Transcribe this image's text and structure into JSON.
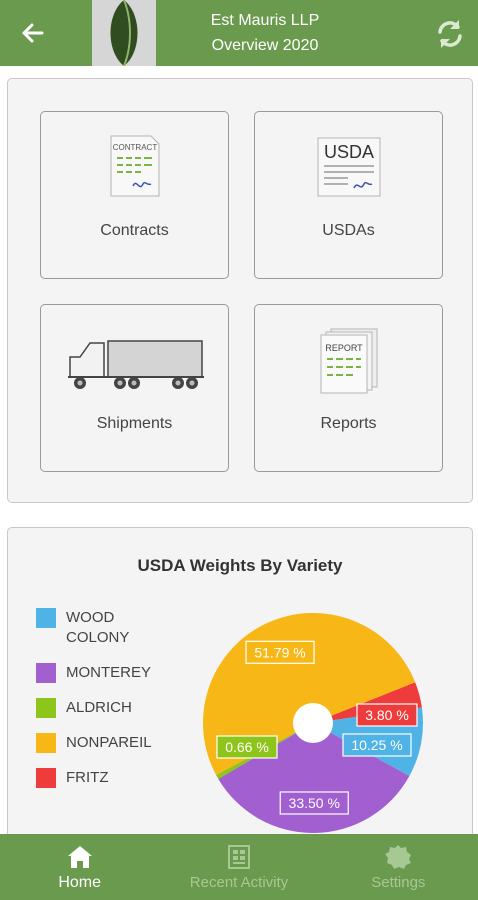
{
  "header": {
    "company": "Est Mauris LLP",
    "subtitle": "Overview 2020",
    "icons": {
      "back": "arrow-left-icon",
      "refresh": "refresh-icon",
      "logo": "leaf-logo"
    }
  },
  "tiles": [
    {
      "label": "Contracts",
      "icon": "contract-document-icon",
      "icon_text": "CONTRACT"
    },
    {
      "label": "USDAs",
      "icon": "usda-document-icon",
      "icon_text": "USDA"
    },
    {
      "label": "Shipments",
      "icon": "truck-icon"
    },
    {
      "label": "Reports",
      "icon": "report-document-icon",
      "icon_text": "REPORT"
    }
  ],
  "chart_data": {
    "type": "pie",
    "title": "USDA Weights By Variety",
    "slices": [
      {
        "name": "WOOD COLONY",
        "value": 10.25,
        "label": "10.25 %",
        "color": "#4fb3e6"
      },
      {
        "name": "MONTEREY",
        "value": 33.5,
        "label": "33.50 %",
        "color": "#a15fcf"
      },
      {
        "name": "ALDRICH",
        "value": 0.66,
        "label": "0.66 %",
        "color": "#8ec51a"
      },
      {
        "name": "NONPAREIL",
        "value": 51.79,
        "label": "51.79 %",
        "color": "#f7b817"
      },
      {
        "name": "FRITZ",
        "value": 3.8,
        "label": "3.80 %",
        "color": "#ee3c3c"
      }
    ],
    "legend": {
      "placement": "left",
      "items": [
        {
          "lines": [
            "WOOD",
            "COLONY"
          ],
          "color": "#4fb3e6"
        },
        {
          "lines": [
            "MONTEREY"
          ],
          "color": "#a15fcf"
        },
        {
          "lines": [
            "ALDRICH"
          ],
          "color": "#8ec51a"
        },
        {
          "lines": [
            "NONPAREIL"
          ],
          "color": "#f7b817"
        },
        {
          "lines": [
            "FRITZ"
          ],
          "color": "#ee3c3c"
        }
      ]
    },
    "donut_hole": true
  },
  "nav": {
    "items": [
      {
        "label": "Home",
        "icon": "home-icon",
        "active": true
      },
      {
        "label": "Recent Activity",
        "icon": "recent-activity-icon",
        "active": false
      },
      {
        "label": "Settings",
        "icon": "settings-gear-icon",
        "active": false
      }
    ]
  },
  "colors": {
    "brand": "#6a9a4e",
    "nav_inactive": "#a6c893"
  }
}
